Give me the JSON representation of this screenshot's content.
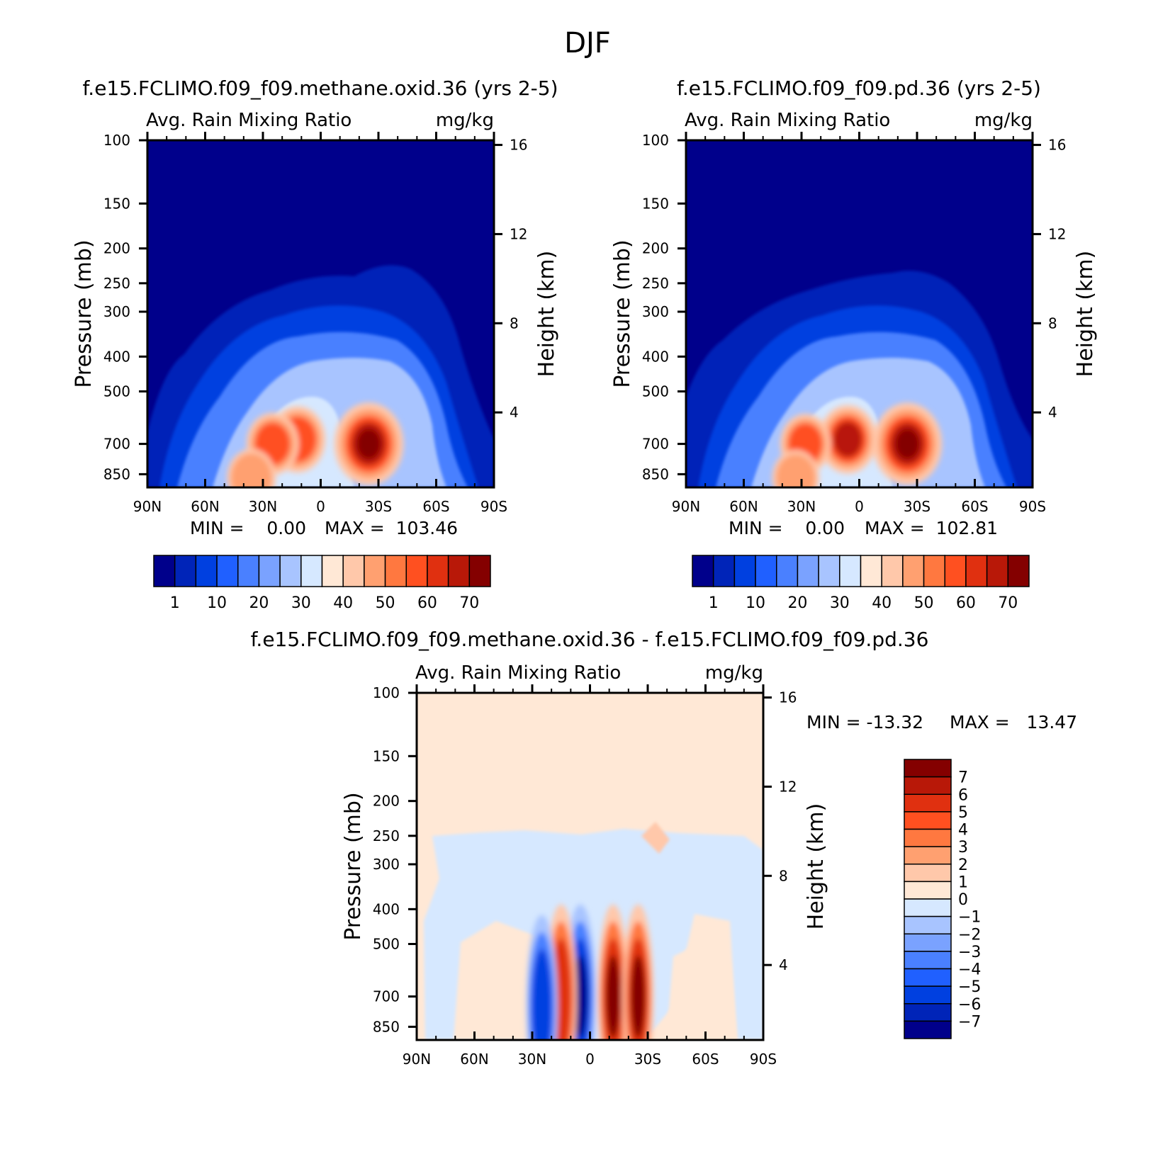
{
  "figure": {
    "title": "DJF"
  },
  "chart_data": [
    {
      "type": "heatmap",
      "title": "f.e15.FCLIMO.f09_f09.methane.oxid.36 (yrs 2-5)",
      "variable": "Avg. Rain Mixing Ratio",
      "units": "mg/kg",
      "ylabel": "Pressure (mb)",
      "ylabel_right": "Height (km)",
      "x_ticks": [
        "90N",
        "60N",
        "30N",
        "0",
        "30S",
        "60S",
        "90S"
      ],
      "y_ticks": [
        100,
        150,
        200,
        250,
        300,
        400,
        500,
        700,
        850
      ],
      "y_right_ticks": [
        16,
        12,
        8,
        4
      ],
      "y_scale": "log",
      "min_text": "MIN =    0.00",
      "max_text": "MAX =  103.46",
      "min": 0.0,
      "max": 103.46,
      "colorbar": {
        "orientation": "horizontal",
        "labels": [
          "1",
          "10",
          "20",
          "30",
          "40",
          "50",
          "60",
          "70"
        ],
        "colors": [
          "#00008b",
          "#0024b8",
          "#0040e0",
          "#2060ff",
          "#4a80ff",
          "#7aa2ff",
          "#a8c4ff",
          "#d6e8ff",
          "#ffe8d6",
          "#ffc8aa",
          "#ffa070",
          "#ff7840",
          "#ff5020",
          "#e03010",
          "#b81808",
          "#840000"
        ]
      },
      "features": [
        {
          "lat": -25,
          "p": 700,
          "max": 103
        },
        {
          "lat": 12,
          "p": 680,
          "max": 65
        },
        {
          "lat": 25,
          "p": 700,
          "max": 55
        },
        {
          "lat": 36,
          "p": 870,
          "max": 45
        }
      ]
    },
    {
      "type": "heatmap",
      "title": "f.e15.FCLIMO.f09_f09.pd.36 (yrs 2-5)",
      "variable": "Avg. Rain Mixing Ratio",
      "units": "mg/kg",
      "ylabel": "Pressure (mb)",
      "ylabel_right": "Height (km)",
      "x_ticks": [
        "90N",
        "60N",
        "30N",
        "0",
        "30S",
        "60S",
        "90S"
      ],
      "y_ticks": [
        100,
        150,
        200,
        250,
        300,
        400,
        500,
        700,
        850
      ],
      "y_right_ticks": [
        16,
        12,
        8,
        4
      ],
      "y_scale": "log",
      "min_text": "MIN =    0.00",
      "max_text": "MAX =  102.81",
      "min": 0.0,
      "max": 102.81,
      "colorbar": {
        "orientation": "horizontal",
        "labels": [
          "1",
          "10",
          "20",
          "30",
          "40",
          "50",
          "60",
          "70"
        ],
        "colors": [
          "#00008b",
          "#0024b8",
          "#0040e0",
          "#2060ff",
          "#4a80ff",
          "#7aa2ff",
          "#a8c4ff",
          "#d6e8ff",
          "#ffe8d6",
          "#ffc8aa",
          "#ffa070",
          "#ff7840",
          "#ff5020",
          "#e03010",
          "#b81808",
          "#840000"
        ]
      },
      "features": [
        {
          "lat": -25,
          "p": 700,
          "max": 102
        },
        {
          "lat": 6,
          "p": 680,
          "max": 70
        },
        {
          "lat": 28,
          "p": 700,
          "max": 50
        },
        {
          "lat": 33,
          "p": 870,
          "max": 40
        }
      ]
    },
    {
      "type": "heatmap",
      "title": "f.e15.FCLIMO.f09_f09.methane.oxid.36 - f.e15.FCLIMO.f09_f09.pd.36",
      "variable": "Avg. Rain Mixing Ratio",
      "units": "mg/kg",
      "ylabel": "Pressure (mb)",
      "ylabel_right": "Height (km)",
      "x_ticks": [
        "90N",
        "60N",
        "30N",
        "0",
        "30S",
        "60S",
        "90S"
      ],
      "y_ticks": [
        100,
        150,
        200,
        250,
        300,
        400,
        500,
        700,
        850
      ],
      "y_right_ticks": [
        16,
        12,
        8,
        4
      ],
      "y_scale": "log",
      "min_text": "MIN = -13.32",
      "max_text": "MAX =   13.47",
      "min": -13.32,
      "max": 13.47,
      "colorbar": {
        "orientation": "vertical",
        "labels": [
          "7",
          "6",
          "5",
          "4",
          "3",
          "2",
          "1",
          "0",
          "-1",
          "-2",
          "-3",
          "-4",
          "-5",
          "-6",
          "-7"
        ],
        "colors": [
          "#840000",
          "#b81808",
          "#e03010",
          "#ff5020",
          "#ff7840",
          "#ffa070",
          "#ffc8aa",
          "#ffe8d6",
          "#d6e8ff",
          "#a8c4ff",
          "#7aa2ff",
          "#4a80ff",
          "#2060ff",
          "#0040e0",
          "#0024b8",
          "#00008b"
        ]
      },
      "features": [
        {
          "lat": 5,
          "p": 700,
          "value": -7
        },
        {
          "lat": -12,
          "p": 700,
          "value": 7
        },
        {
          "lat": -25,
          "p": 700,
          "value": 7
        },
        {
          "lat": 15,
          "p": 700,
          "value": 6
        },
        {
          "lat": 25,
          "p": 750,
          "value": -5
        }
      ]
    }
  ]
}
